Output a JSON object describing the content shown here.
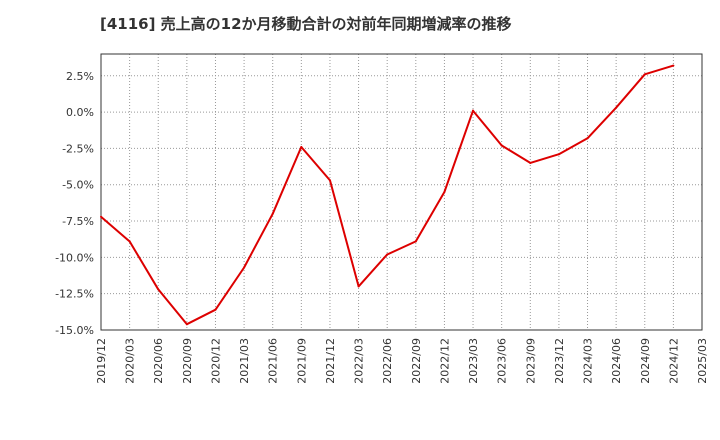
{
  "chart_data": {
    "type": "line",
    "title": "[4116]  売上高の12か月移動合計の対前年同期増減率の推移",
    "xlabel": "",
    "ylabel": "",
    "ylim": [
      -15.0,
      4.0
    ],
    "y_ticks": [
      2.5,
      0.0,
      -2.5,
      -5.0,
      -7.5,
      -10.0,
      -12.5,
      -15.0
    ],
    "y_tick_labels": [
      "2.5%",
      "0.0%",
      "-2.5%",
      "-5.0%",
      "-7.5%",
      "-10.0%",
      "-12.5%",
      "-15.0%"
    ],
    "x_tick_labels": [
      "2019/12",
      "2020/03",
      "2020/06",
      "2020/09",
      "2020/12",
      "2021/03",
      "2021/06",
      "2021/09",
      "2021/12",
      "2022/03",
      "2022/06",
      "2022/09",
      "2022/12",
      "2023/03",
      "2023/06",
      "2023/09",
      "2023/12",
      "2024/03",
      "2024/06",
      "2024/09",
      "2024/12",
      "2025/03"
    ],
    "grid": true,
    "series": [
      {
        "name": "増減率",
        "color": "#dd0000",
        "x": [
          "2019/12",
          "2020/03",
          "2020/06",
          "2020/09",
          "2020/12",
          "2021/03",
          "2021/06",
          "2021/09",
          "2021/12",
          "2022/03",
          "2022/06",
          "2022/09",
          "2022/12",
          "2023/03",
          "2023/06",
          "2023/09",
          "2023/12",
          "2024/03",
          "2024/06",
          "2024/09",
          "2024/12"
        ],
        "values": [
          -7.2,
          -8.9,
          -12.2,
          -14.6,
          -13.6,
          -10.7,
          -7.0,
          -2.4,
          -4.7,
          -12.0,
          -9.8,
          -8.9,
          -5.5,
          0.1,
          -2.3,
          -3.5,
          -2.9,
          -1.8,
          0.3,
          2.6,
          3.2
        ]
      }
    ]
  }
}
